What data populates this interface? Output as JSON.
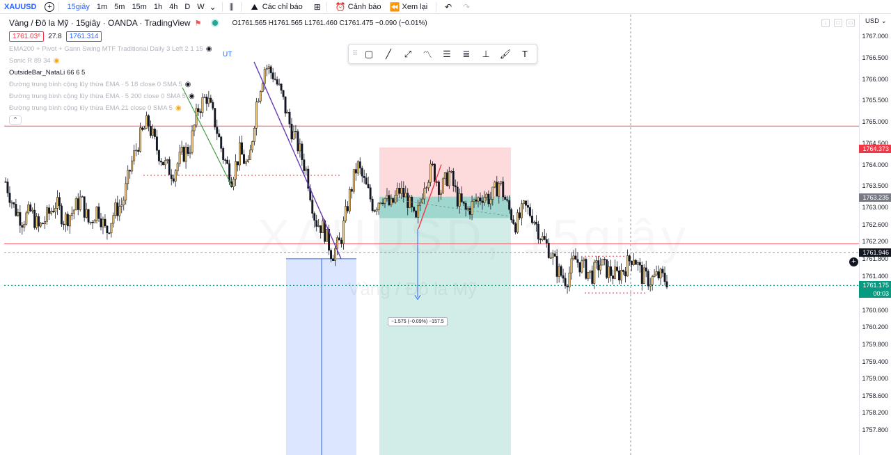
{
  "toolbar": {
    "symbol": "XAUUSD",
    "intervals": [
      "15giây",
      "1m",
      "5m",
      "15m",
      "1h",
      "4h",
      "D",
      "W"
    ],
    "active_interval": "15giây",
    "alerts_label": "Các chỉ báo",
    "alerts2_label": "Cảnh báo",
    "replay_label": "Xem lại"
  },
  "legend": {
    "title": "Vàng / Đô la Mỹ · 15giây · OANDA · TradingView",
    "ohlc": "O1761.565 H1761.565 L1761.460 C1761.475 −0.090 (−0.01%)",
    "bid": "1761.03⁶",
    "spread": "27.8",
    "ask": "1761.314",
    "indicators": [
      {
        "label": "EMA200 + Pivot + Gann Swing MTF Traditional Daily 3 Left 2 1 15",
        "style": "faded",
        "eye": "eye"
      },
      {
        "label": "Sonic R 89 34",
        "style": "faded",
        "eye": "eye-y"
      },
      {
        "label": "OutsideBar_NataLi 66 6 5",
        "style": "dark",
        "eye": ""
      },
      {
        "label": "Đường trung bình cộng lũy thừa EMA · 5 18 close 0 SMA 5",
        "style": "faded",
        "eye": "eye"
      },
      {
        "label": "Đường trung bình cộng lũy thừa EMA · 5 200 close 0 SMA 5",
        "style": "faded",
        "eye": "eye"
      },
      {
        "label": "Đường trung bình cộng lũy thừa EMA 21 close 0 SMA 5",
        "style": "faded",
        "eye": "eye-y"
      }
    ]
  },
  "chart": {
    "watermark_symbol": "XAUUSD, 15giây",
    "watermark_name": "Vàng / Đô la Mỹ",
    "ut_label": "UT",
    "measure_label": "−1.575 (−0.09%) −157.5",
    "currency": "USD",
    "up_color": "#26a69a",
    "down_color": "#131722"
  },
  "chart_data": {
    "type": "candlestick",
    "ylim": [
      1757.7,
      1767.2
    ],
    "price_levels": [
      "1767.000",
      "1766.500",
      "1766.000",
      "1765.500",
      "1765.000",
      "1764.500",
      "1764.000",
      "1763.500",
      "1763.000",
      "1762.600",
      "1762.200",
      "1761.800",
      "1761.400",
      "1760.600",
      "1760.200",
      "1759.800",
      "1759.400",
      "1759.000",
      "1758.600",
      "1758.200",
      "1757.800"
    ],
    "tags": [
      {
        "value": 1764.373,
        "label": "1764.373",
        "color": "#f23645"
      },
      {
        "value": 1763.235,
        "label": "1763.235",
        "color": "#787b86"
      },
      {
        "value": 1761.946,
        "label": "1761.946",
        "color": "#131722"
      },
      {
        "value": 1761.175,
        "label": "1761.175",
        "color": "#089981",
        "sub": "00:03"
      }
    ],
    "horizontal_lines": [
      1764.9,
      1762.15,
      1761.175
    ],
    "series_path": [
      1763.6,
      1763.0,
      1762.7,
      1762.9,
      1762.5,
      1762.8,
      1763.1,
      1762.7,
      1762.9,
      1763.2,
      1762.6,
      1763.0,
      1762.4,
      1762.9,
      1763.1,
      1764.0,
      1764.6,
      1765.0,
      1764.4,
      1764.0,
      1763.8,
      1764.2,
      1764.4,
      1765.3,
      1765.6,
      1765.0,
      1764.2,
      1763.7,
      1764.3,
      1763.9,
      1765.5,
      1766.3,
      1766.1,
      1765.6,
      1764.9,
      1764.4,
      1763.8,
      1762.7,
      1762.5,
      1761.9,
      1762.2,
      1763.2,
      1764.0,
      1763.5,
      1763.0,
      1763.3,
      1763.0,
      1763.4,
      1763.2,
      1762.6,
      1763.6,
      1763.9,
      1763.4,
      1763.8,
      1763.2,
      1762.9,
      1763.1,
      1763.3,
      1763.2,
      1763.6,
      1763.0,
      1762.6,
      1763.0,
      1762.8,
      1762.3,
      1762.0,
      1761.5,
      1761.3,
      1761.8,
      1761.6,
      1761.4,
      1761.7,
      1761.5,
      1761.4,
      1761.6,
      1761.9,
      1761.4,
      1761.3,
      1761.4,
      1761.3
    ],
    "long_position": {
      "entry": 1763.25,
      "take_profit": 1764.4,
      "stop": 1757.7
    },
    "short_zone": {
      "top": 1761.8,
      "bottom": 1757.7
    }
  }
}
